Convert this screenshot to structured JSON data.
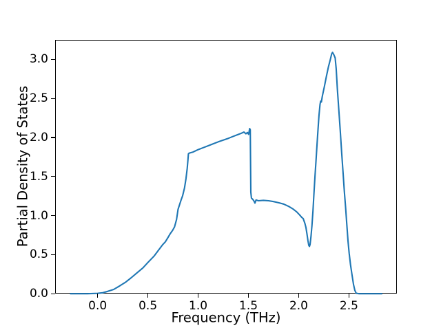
{
  "figure": {
    "background": "#ffffff",
    "accent_line_color": "#1f77b4"
  },
  "chart_data": {
    "type": "line",
    "title": "",
    "xlabel": "Frequency (THz)",
    "ylabel": "Partial Density of States",
    "xlim": [
      -0.423,
      2.977
    ],
    "ylim": [
      0,
      3.255
    ],
    "grid": false,
    "legend_position": "none",
    "x_ticks": [
      0.0,
      0.5,
      1.0,
      1.5,
      2.0,
      2.5
    ],
    "x_tick_labels": [
      "0.0",
      "0.5",
      "1.0",
      "1.5",
      "2.0",
      "2.5"
    ],
    "y_ticks": [
      0.0,
      0.5,
      1.0,
      1.5,
      2.0,
      2.5,
      3.0
    ],
    "y_tick_labels": [
      "0.0",
      "0.5",
      "1.0",
      "1.5",
      "2.0",
      "2.5",
      "3.0"
    ],
    "series": [
      {
        "name": "partial-dos",
        "color": "#1f77b4",
        "line_width": 2.1,
        "points": [
          [
            -0.27,
            0.0
          ],
          [
            -0.2,
            0.0
          ],
          [
            -0.1,
            0.0
          ],
          [
            0.0,
            0.004
          ],
          [
            0.05,
            0.012
          ],
          [
            0.1,
            0.03
          ],
          [
            0.16,
            0.055
          ],
          [
            0.22,
            0.1
          ],
          [
            0.28,
            0.15
          ],
          [
            0.33,
            0.2
          ],
          [
            0.39,
            0.265
          ],
          [
            0.45,
            0.33
          ],
          [
            0.5,
            0.4
          ],
          [
            0.56,
            0.48
          ],
          [
            0.61,
            0.565
          ],
          [
            0.645,
            0.625
          ],
          [
            0.674,
            0.665
          ],
          [
            0.7,
            0.72
          ],
          [
            0.722,
            0.768
          ],
          [
            0.745,
            0.81
          ],
          [
            0.765,
            0.856
          ],
          [
            0.785,
            0.95
          ],
          [
            0.8,
            1.08
          ],
          [
            0.815,
            1.14
          ],
          [
            0.83,
            1.2
          ],
          [
            0.845,
            1.253
          ],
          [
            0.864,
            1.356
          ],
          [
            0.879,
            1.473
          ],
          [
            0.891,
            1.605
          ],
          [
            0.898,
            1.708
          ],
          [
            0.903,
            1.79
          ],
          [
            0.91,
            1.8
          ],
          [
            0.95,
            1.815
          ],
          [
            1.0,
            1.845
          ],
          [
            1.05,
            1.87
          ],
          [
            1.1,
            1.895
          ],
          [
            1.15,
            1.92
          ],
          [
            1.2,
            1.945
          ],
          [
            1.25,
            1.967
          ],
          [
            1.3,
            1.99
          ],
          [
            1.35,
            2.015
          ],
          [
            1.4,
            2.04
          ],
          [
            1.43,
            2.055
          ],
          [
            1.455,
            2.07
          ],
          [
            1.475,
            2.048
          ],
          [
            1.49,
            2.065
          ],
          [
            1.502,
            2.04
          ],
          [
            1.512,
            2.115
          ],
          [
            1.518,
            2.1
          ],
          [
            1.524,
            1.3
          ],
          [
            1.53,
            1.225
          ],
          [
            1.545,
            1.205
          ],
          [
            1.556,
            1.185
          ],
          [
            1.565,
            1.16
          ],
          [
            1.576,
            1.2
          ],
          [
            1.6,
            1.19
          ],
          [
            1.65,
            1.196
          ],
          [
            1.7,
            1.19
          ],
          [
            1.75,
            1.18
          ],
          [
            1.8,
            1.165
          ],
          [
            1.85,
            1.148
          ],
          [
            1.9,
            1.118
          ],
          [
            1.94,
            1.088
          ],
          [
            1.98,
            1.048
          ],
          [
            2.01,
            1.008
          ],
          [
            2.03,
            0.978
          ],
          [
            2.045,
            0.962
          ],
          [
            2.052,
            0.935
          ],
          [
            2.062,
            0.9
          ],
          [
            2.072,
            0.848
          ],
          [
            2.082,
            0.77
          ],
          [
            2.092,
            0.68
          ],
          [
            2.1,
            0.62
          ],
          [
            2.107,
            0.605
          ],
          [
            2.113,
            0.63
          ],
          [
            2.122,
            0.73
          ],
          [
            2.132,
            0.87
          ],
          [
            2.142,
            1.06
          ],
          [
            2.152,
            1.28
          ],
          [
            2.162,
            1.5
          ],
          [
            2.172,
            1.7
          ],
          [
            2.182,
            1.9
          ],
          [
            2.192,
            2.1
          ],
          [
            2.202,
            2.28
          ],
          [
            2.212,
            2.42
          ],
          [
            2.218,
            2.465
          ],
          [
            2.226,
            2.455
          ],
          [
            2.235,
            2.53
          ],
          [
            2.255,
            2.65
          ],
          [
            2.275,
            2.78
          ],
          [
            2.295,
            2.9
          ],
          [
            2.315,
            3.0
          ],
          [
            2.328,
            3.07
          ],
          [
            2.337,
            3.09
          ],
          [
            2.35,
            3.06
          ],
          [
            2.363,
            3.02
          ],
          [
            2.373,
            2.88
          ],
          [
            2.385,
            2.62
          ],
          [
            2.398,
            2.38
          ],
          [
            2.413,
            2.1
          ],
          [
            2.428,
            1.8
          ],
          [
            2.443,
            1.52
          ],
          [
            2.455,
            1.3
          ],
          [
            2.467,
            1.1
          ],
          [
            2.478,
            0.9
          ],
          [
            2.49,
            0.68
          ],
          [
            2.502,
            0.52
          ],
          [
            2.516,
            0.37
          ],
          [
            2.53,
            0.245
          ],
          [
            2.545,
            0.12
          ],
          [
            2.558,
            0.045
          ],
          [
            2.572,
            0.005
          ],
          [
            2.6,
            0.0
          ],
          [
            2.7,
            0.0
          ],
          [
            2.827,
            0.0
          ]
        ]
      }
    ]
  }
}
